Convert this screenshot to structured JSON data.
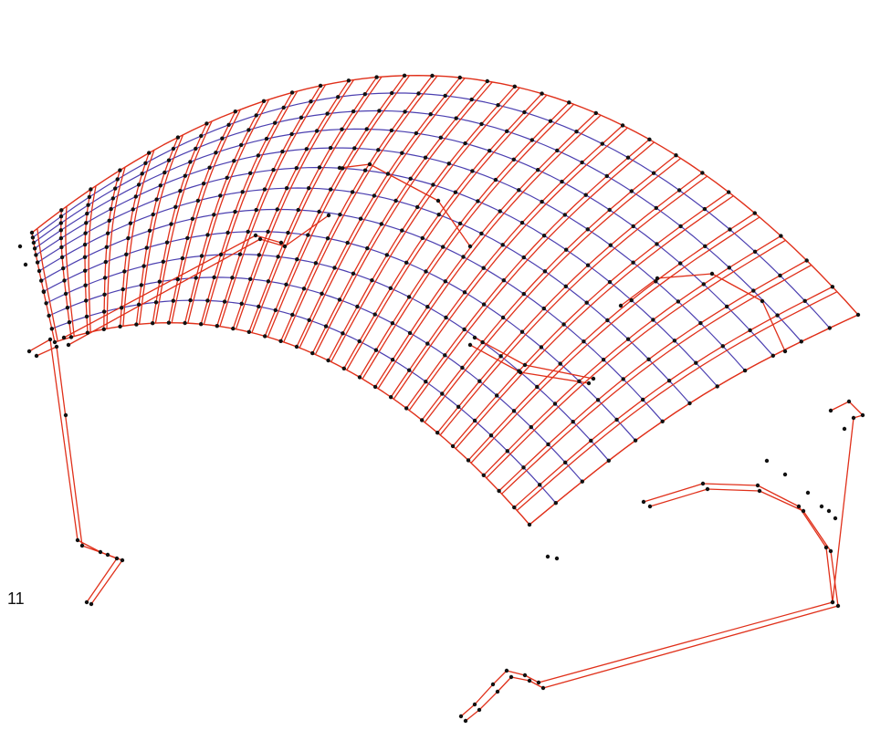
{
  "figure": {
    "number_label": "11"
  },
  "colors": {
    "background": "#ffffff",
    "rib_lines": "#e0301a",
    "cross_lines": "#4b3fb0",
    "nodes": "#111111"
  },
  "shape": "dome-wireframe"
}
